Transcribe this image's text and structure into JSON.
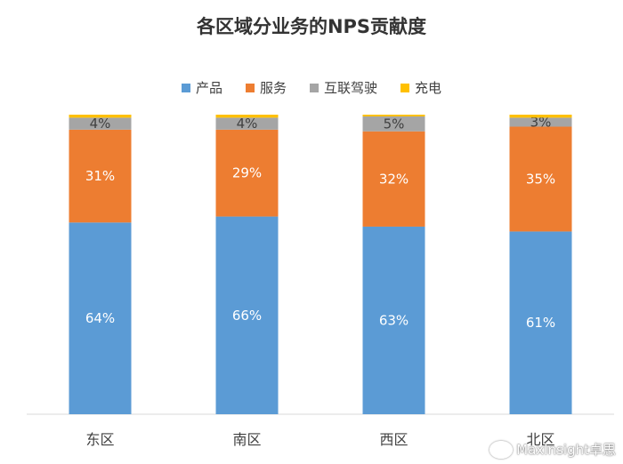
{
  "chart_data": {
    "type": "bar",
    "stacked": true,
    "percent_stacked": true,
    "title": "各区域分业务的NPS贡献度",
    "categories": [
      "东区",
      "南区",
      "西区",
      "北区"
    ],
    "series": [
      {
        "name": "产品",
        "color": "#5B9BD5",
        "values": [
          64,
          66,
          63,
          61
        ],
        "labels": [
          "64%",
          "66%",
          "63%",
          "61%"
        ]
      },
      {
        "name": "服务",
        "color": "#ED7D31",
        "values": [
          31,
          29,
          32,
          35
        ],
        "labels": [
          "31%",
          "29%",
          "32%",
          "35%"
        ]
      },
      {
        "name": "互联驾驶",
        "color": "#A5A5A5",
        "values": [
          4,
          4,
          5,
          3
        ],
        "labels": [
          "4%",
          "4%",
          "5%",
          "3%"
        ]
      },
      {
        "name": "充电",
        "color": "#FFC000",
        "values": [
          1,
          1,
          0.6,
          1
        ],
        "labels": [
          "",
          "",
          "",
          ""
        ]
      }
    ],
    "ylim": [
      0,
      100
    ],
    "legend_position": "top",
    "grid": false
  },
  "watermark": "MaxInsight卓思"
}
